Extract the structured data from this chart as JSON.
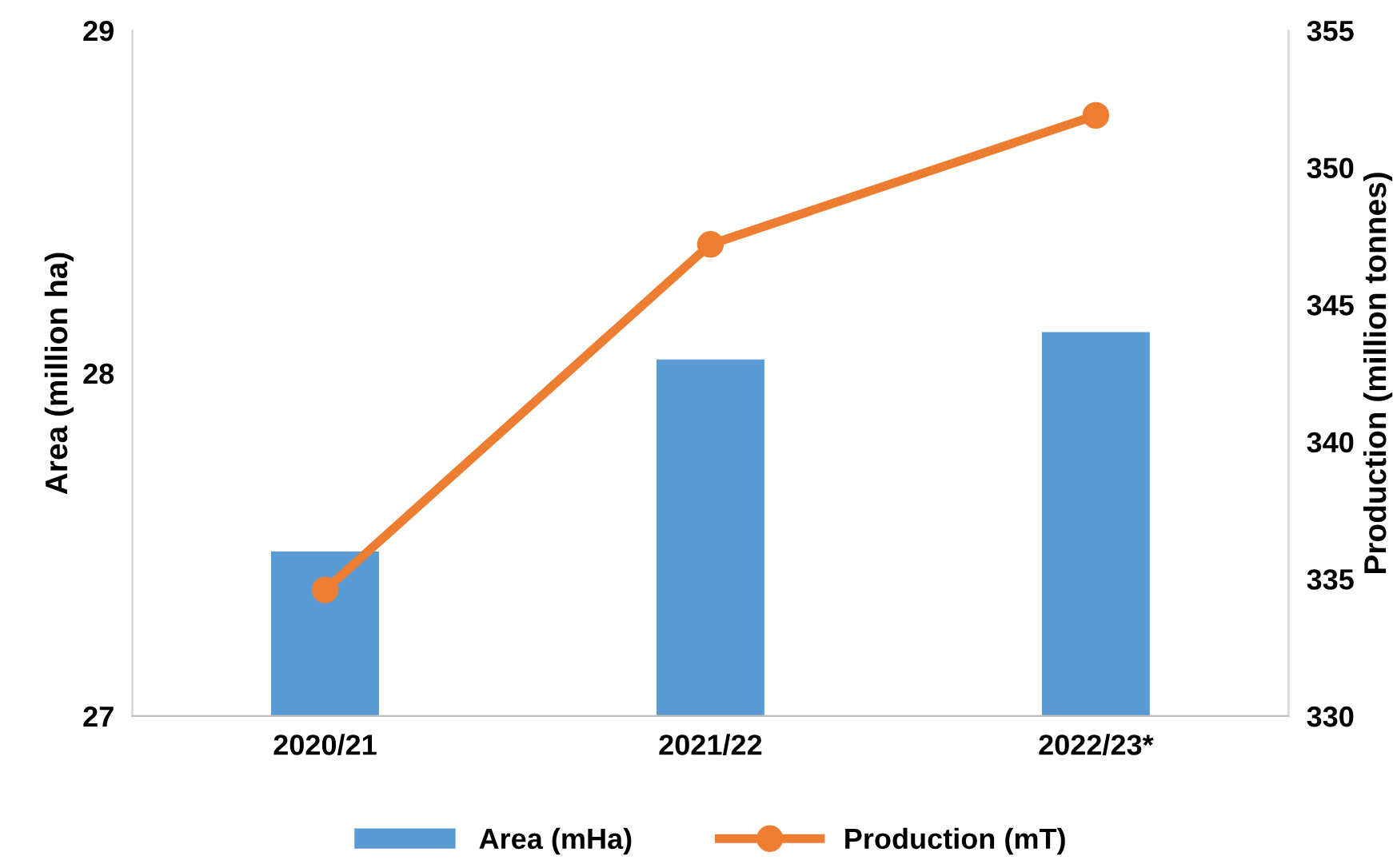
{
  "chart_data": {
    "type": "bar",
    "categories": [
      "2020/21",
      "2021/22",
      "2022/23*"
    ],
    "ylabel": "Area (million ha)",
    "y2label": "Production (million tonnes)",
    "series": [
      {
        "name": "Area (mHa)",
        "color": "#5b9bd5",
        "values": [
          27.48,
          28.04,
          28.12
        ]
      },
      {
        "name": "Production (mT)",
        "type": "line",
        "axis": "y2",
        "color": "#ed7d31",
        "values": [
          334.6,
          347.2,
          351.9
        ],
        "marker": "circle",
        "line_style": "solid"
      }
    ],
    "ylim": [
      27,
      29
    ],
    "yticks": [
      27,
      28,
      29
    ],
    "y2lim": [
      330,
      355
    ],
    "y2ticks": [
      330,
      335,
      340,
      345,
      350,
      355
    ],
    "grid": false,
    "legend": "bottom"
  }
}
